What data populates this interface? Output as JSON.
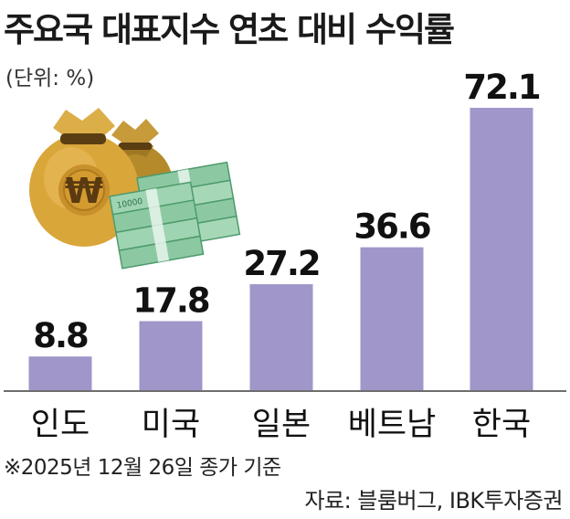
{
  "header": {
    "title": "주요국 대표지수 연초 대비 수익률",
    "unit": "(단위: %)"
  },
  "footer": {
    "note": "※2025년 12월 26일 종가  기준",
    "source": "자료: 블룸버그, IBK투자증권"
  },
  "decoration": {
    "money_bag_symbol": "₩",
    "banknote_text": "10000"
  },
  "colors": {
    "bar": "#a196c9",
    "axis": "#6e6e6e"
  },
  "chart_data": {
    "type": "bar",
    "title": "주요국 대표지수 연초 대비 수익률",
    "ylabel": "(단위: %)",
    "categories": [
      "인도",
      "미국",
      "일본",
      "베트남",
      "한국"
    ],
    "values": [
      8.8,
      17.8,
      27.2,
      36.6,
      72.1
    ],
    "data_labels": [
      "8.8",
      "17.8",
      "27.2",
      "36.6",
      "72.1"
    ],
    "ylim": [
      0,
      75
    ],
    "grid": false,
    "legend": "none"
  }
}
